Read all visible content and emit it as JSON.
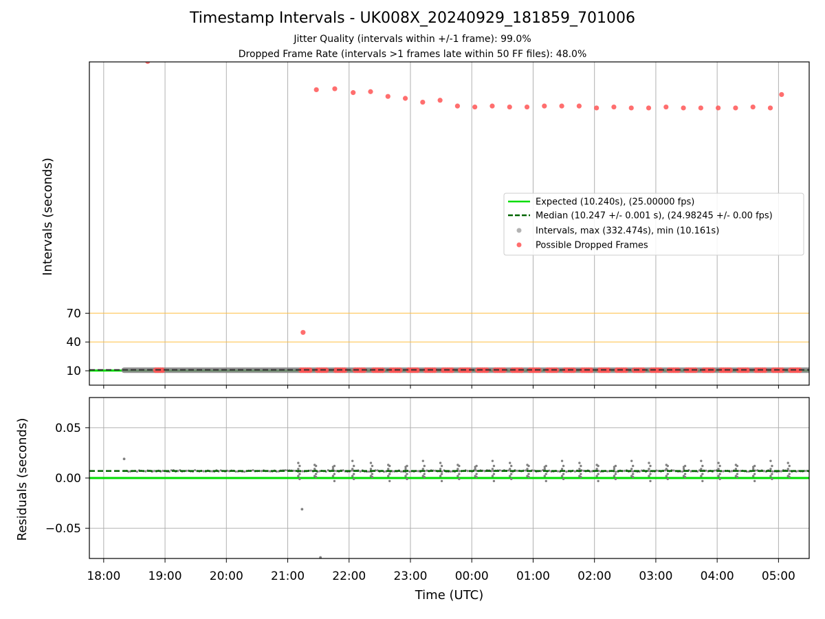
{
  "chart_data": [
    {
      "type": "scatter",
      "panel": "top",
      "title": "Timestamp Intervals - UK008X_20240929_181859_701006",
      "subtitle_lines": [
        "Jitter Quality (intervals within +/-1 frame): 99.0%",
        "Dropped Frame Rate (intervals >1 frames late within 50 FF files): 48.0%"
      ],
      "ylabel": "Intervals (seconds)",
      "xlabel": "",
      "x_range": [
        "17:46",
        "05:30"
      ],
      "y_range": [
        -5,
        332
      ],
      "yticks": [
        10,
        40,
        70
      ],
      "xticks": [
        "18:00",
        "19:00",
        "20:00",
        "21:00",
        "22:00",
        "23:00",
        "00:00",
        "01:00",
        "02:00",
        "03:00",
        "04:00",
        "05:00"
      ],
      "grid": "vertical",
      "threshold_lines": [
        40,
        70
      ],
      "threshold_color": "#ffbf40",
      "expected": 10.24,
      "median": 10.247,
      "legend_placement": "center-right",
      "legend": [
        "Expected (10.240s), (25.00000 fps)",
        "Median (10.247 +/- 0.001 s), (24.98245 +/- 0.00 fps)",
        "Intervals, max (332.474s), min (10.161s)",
        "Possible Dropped Frames"
      ],
      "series": [
        {
          "name": "Expected (10.240s), (25.00000 fps)",
          "color": "#00dd00",
          "style": "solid"
        },
        {
          "name": "Median (10.247 +/- 0.001 s), (24.98245 +/- 0.00 fps)",
          "color": "#006400",
          "style": "dashed"
        },
        {
          "name": "Intervals, max (332.474s), min (10.161s)",
          "color": "#808080",
          "marker": "dot",
          "band": {
            "x_start": "18:20",
            "x_end": "05:30",
            "y": 10.24
          }
        },
        {
          "name": "Possible Dropped Frames",
          "color": "#ff5555",
          "marker": "dot",
          "outliers": [
            {
              "x": "18:43",
              "y": 332.5
            },
            {
              "x": "21:15",
              "y": 50
            },
            {
              "x": "21:28",
              "y": 303
            },
            {
              "x": "21:46",
              "y": 304
            },
            {
              "x": "22:04",
              "y": 300
            },
            {
              "x": "22:21",
              "y": 301
            },
            {
              "x": "22:38",
              "y": 296
            },
            {
              "x": "22:55",
              "y": 294
            },
            {
              "x": "23:12",
              "y": 290
            },
            {
              "x": "23:29",
              "y": 292
            },
            {
              "x": "23:46",
              "y": 286
            },
            {
              "x": "00:03",
              "y": 285
            },
            {
              "x": "00:20",
              "y": 286
            },
            {
              "x": "00:37",
              "y": 285
            },
            {
              "x": "00:54",
              "y": 285
            },
            {
              "x": "01:11",
              "y": 286
            },
            {
              "x": "01:28",
              "y": 286
            },
            {
              "x": "01:45",
              "y": 286
            },
            {
              "x": "02:02",
              "y": 284
            },
            {
              "x": "02:19",
              "y": 285
            },
            {
              "x": "02:36",
              "y": 284
            },
            {
              "x": "02:53",
              "y": 284
            },
            {
              "x": "03:10",
              "y": 285
            },
            {
              "x": "03:27",
              "y": 284
            },
            {
              "x": "03:44",
              "y": 284
            },
            {
              "x": "04:01",
              "y": 284
            },
            {
              "x": "04:18",
              "y": 284
            },
            {
              "x": "04:35",
              "y": 285
            },
            {
              "x": "04:52",
              "y": 284
            },
            {
              "x": "05:03",
              "y": 298
            }
          ],
          "baseline_clusters": [
            {
              "x_start": "18:51",
              "x_end": "18:59"
            },
            {
              "x_start": "21:13",
              "x_end": "21:22"
            },
            {
              "x_start": "21:29",
              "x_end": "21:39"
            },
            {
              "x_start": "21:47",
              "x_end": "21:56"
            },
            {
              "x_start": "22:06",
              "x_end": "22:15"
            },
            {
              "x_start": "22:24",
              "x_end": "22:33"
            },
            {
              "x_start": "22:41",
              "x_end": "22:50"
            },
            {
              "x_start": "22:58",
              "x_end": "23:07"
            },
            {
              "x_start": "23:15",
              "x_end": "23:24"
            },
            {
              "x_start": "23:32",
              "x_end": "23:41"
            },
            {
              "x_start": "23:49",
              "x_end": "23:58"
            },
            {
              "x_start": "00:06",
              "x_end": "00:15"
            },
            {
              "x_start": "00:23",
              "x_end": "00:32"
            },
            {
              "x_start": "00:40",
              "x_end": "00:49"
            },
            {
              "x_start": "00:57",
              "x_end": "01:06"
            },
            {
              "x_start": "01:14",
              "x_end": "01:23"
            },
            {
              "x_start": "01:31",
              "x_end": "01:40"
            },
            {
              "x_start": "01:48",
              "x_end": "01:57"
            },
            {
              "x_start": "02:05",
              "x_end": "02:14"
            },
            {
              "x_start": "02:22",
              "x_end": "02:31"
            },
            {
              "x_start": "02:39",
              "x_end": "02:48"
            },
            {
              "x_start": "02:56",
              "x_end": "03:05"
            },
            {
              "x_start": "03:13",
              "x_end": "03:22"
            },
            {
              "x_start": "03:30",
              "x_end": "03:39"
            },
            {
              "x_start": "03:47",
              "x_end": "03:56"
            },
            {
              "x_start": "04:04",
              "x_end": "04:13"
            },
            {
              "x_start": "04:21",
              "x_end": "04:30"
            },
            {
              "x_start": "04:38",
              "x_end": "04:47"
            },
            {
              "x_start": "04:55",
              "x_end": "05:04"
            },
            {
              "x_start": "05:12",
              "x_end": "05:21"
            }
          ]
        }
      ]
    },
    {
      "type": "scatter",
      "panel": "bottom",
      "xlabel": "Time (UTC)",
      "ylabel": "Residuals (seconds)",
      "x_range": [
        "17:46",
        "05:30"
      ],
      "y_range": [
        -0.08,
        0.08
      ],
      "yticks": [
        0.05,
        0.0,
        -0.05
      ],
      "ytick_labels": [
        "0.05",
        "0.00",
        "−0.05"
      ],
      "xticks": [
        "18:00",
        "19:00",
        "20:00",
        "21:00",
        "22:00",
        "23:00",
        "00:00",
        "01:00",
        "02:00",
        "03:00",
        "04:00",
        "05:00"
      ],
      "grid": "both",
      "expected_residual": 0.0,
      "median_residual": 0.007,
      "series": [
        {
          "name": "",
          "color": "#808080",
          "marker": "dot",
          "notable_points": [
            {
              "x": "18:20",
              "y": 0.019
            },
            {
              "x": "21:14",
              "y": -0.031
            },
            {
              "x": "21:32",
              "y": -0.079
            }
          ],
          "cluster_spread": {
            "min": -0.003,
            "max": 0.017
          }
        }
      ]
    }
  ]
}
